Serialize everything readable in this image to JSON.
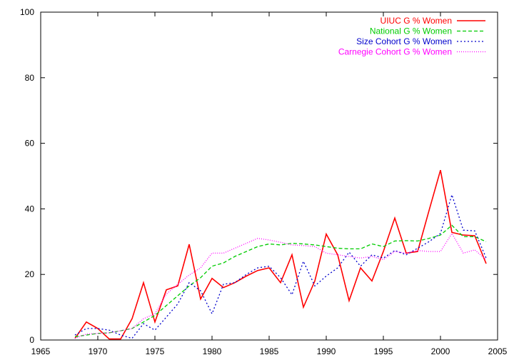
{
  "chart_data": {
    "type": "line",
    "title": "",
    "xlabel": "",
    "ylabel": "",
    "xlim": [
      1965,
      2005
    ],
    "ylim": [
      0,
      100
    ],
    "xticks": [
      1965,
      1970,
      1975,
      1980,
      1985,
      1990,
      1995,
      2000,
      2005
    ],
    "yticks": [
      0,
      20,
      40,
      60,
      80,
      100
    ],
    "grid": false,
    "legend_position": "top-right",
    "series": [
      {
        "name": "UIUC G % Women",
        "color": "#ff0000",
        "dash": "solid",
        "x": [
          1968,
          1969,
          1970,
          1971,
          1972,
          1973,
          1974,
          1975,
          1976,
          1977,
          1978,
          1979,
          1980,
          1981,
          1982,
          1983,
          1984,
          1985,
          1986,
          1987,
          1988,
          1989,
          1990,
          1991,
          1992,
          1993,
          1994,
          1995,
          1996,
          1997,
          1998,
          1999,
          2000,
          2001,
          2002,
          2003,
          2004
        ],
        "y": [
          0.5,
          5.5,
          3.5,
          0.3,
          0.3,
          6.5,
          17.5,
          5.5,
          15.3,
          16.5,
          29.2,
          12.5,
          18.8,
          16.0,
          17.5,
          19.5,
          21.2,
          22.0,
          17.5,
          26.0,
          10.0,
          18.0,
          32.3,
          26.0,
          12.0,
          22.0,
          18.0,
          27.0,
          37.2,
          26.5,
          27.0,
          39.5,
          51.8,
          32.8,
          32.0,
          31.8,
          23.3
        ]
      },
      {
        "name": "National G % Women",
        "color": "#00cc00",
        "dash": "dashed",
        "x": [
          1968,
          1969,
          1970,
          1971,
          1972,
          1973,
          1974,
          1975,
          1976,
          1977,
          1978,
          1979,
          1980,
          1981,
          1982,
          1983,
          1984,
          1985,
          1986,
          1987,
          1988,
          1989,
          1990,
          1991,
          1992,
          1993,
          1994,
          1995,
          1996,
          1997,
          1998,
          1999,
          2000,
          2001,
          2002,
          2003,
          2004
        ],
        "y": [
          1.0,
          1.5,
          2.0,
          2.2,
          2.8,
          3.5,
          5.5,
          7.5,
          10.5,
          13.5,
          16.5,
          19.0,
          22.5,
          23.5,
          25.5,
          27.0,
          28.5,
          29.3,
          29.0,
          29.5,
          29.3,
          29.0,
          28.5,
          28.0,
          27.8,
          27.8,
          29.3,
          28.5,
          30.2,
          30.3,
          30.2,
          31.0,
          32.0,
          35.0,
          31.5,
          31.5,
          30.0
        ]
      },
      {
        "name": "Size Cohort G % Women",
        "color": "#0000cc",
        "dash": "dotted",
        "x": [
          1968,
          1969,
          1970,
          1971,
          1972,
          1973,
          1974,
          1975,
          1976,
          1977,
          1978,
          1979,
          1980,
          1981,
          1982,
          1983,
          1984,
          1985,
          1986,
          1987,
          1988,
          1989,
          1990,
          1991,
          1992,
          1993,
          1994,
          1995,
          1996,
          1997,
          1998,
          1999,
          2000,
          2001,
          2002,
          2003,
          2004
        ],
        "y": [
          1.5,
          3.5,
          3.5,
          3.0,
          1.5,
          0.5,
          5.0,
          3.0,
          7.0,
          11.0,
          17.5,
          15.0,
          8.0,
          17.0,
          17.5,
          20.0,
          22.0,
          22.5,
          19.0,
          13.8,
          24.0,
          16.5,
          19.5,
          22.0,
          26.8,
          22.5,
          26.0,
          25.0,
          27.3,
          26.0,
          28.0,
          30.0,
          32.5,
          44.3,
          33.5,
          33.3,
          25.0
        ]
      },
      {
        "name": "Carnegie Cohort G % Women",
        "color": "#ff00ff",
        "dash": "finedot",
        "x": [
          1968,
          1969,
          1970,
          1971,
          1972,
          1973,
          1974,
          1975,
          1976,
          1977,
          1978,
          1979,
          1980,
          1981,
          1982,
          1983,
          1984,
          1985,
          1986,
          1987,
          1988,
          1989,
          1990,
          1991,
          1992,
          1993,
          1994,
          1995,
          1996,
          1997,
          1998,
          1999,
          2000,
          2001,
          2002,
          2003,
          2004
        ],
        "y": [
          0.5,
          1.8,
          2.0,
          2.2,
          2.8,
          3.5,
          6.5,
          8.0,
          14.0,
          17.0,
          19.8,
          22.0,
          26.5,
          26.5,
          28.0,
          29.5,
          31.0,
          30.5,
          29.8,
          29.0,
          28.8,
          28.5,
          26.5,
          26.0,
          25.5,
          25.0,
          25.5,
          24.5,
          27.0,
          26.5,
          27.3,
          27.0,
          27.0,
          32.5,
          26.5,
          27.5,
          24.5
        ]
      }
    ]
  }
}
